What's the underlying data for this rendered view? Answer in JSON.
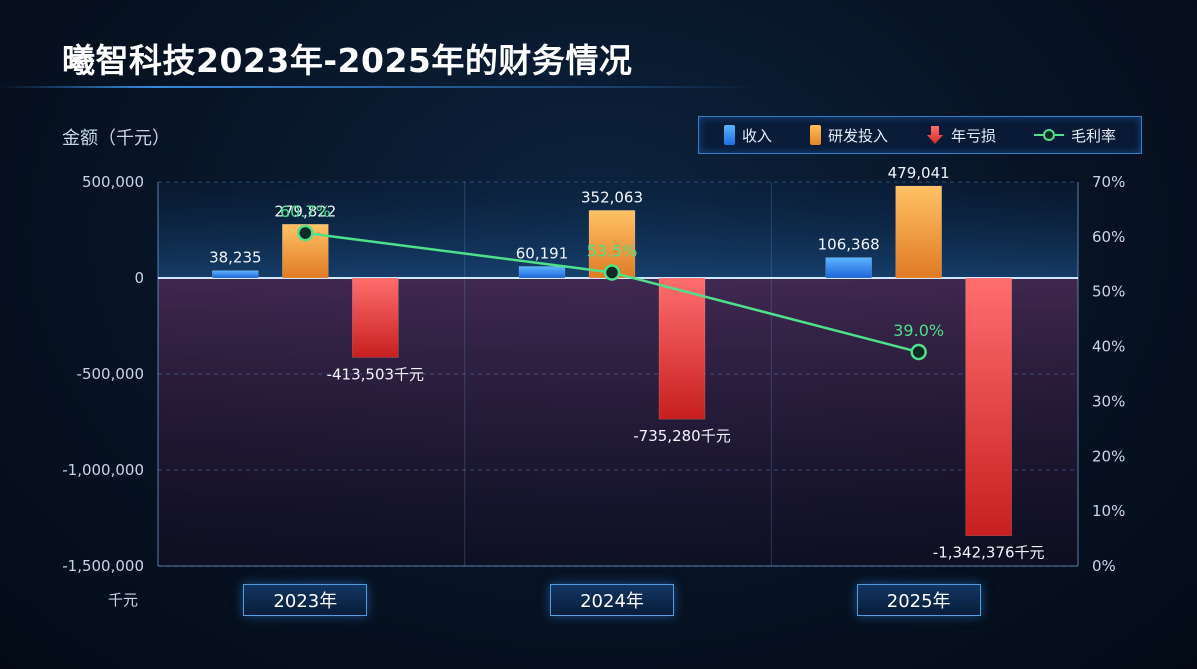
{
  "title": "曦智科技2023年-2025年的财务情况",
  "unit_top": "金额（千元）",
  "unit_bottom": "千元",
  "legend": [
    {
      "label": "收入",
      "icon": "blue-bar-icon",
      "color": "#3d8ff5"
    },
    {
      "label": "研发投入",
      "icon": "orange-bar-icon",
      "color": "#f5a23d"
    },
    {
      "label": "年亏损",
      "icon": "red-down-arrow-icon",
      "color": "#e5413f"
    },
    {
      "label": "毛利率",
      "icon": "green-line-marker-icon",
      "color": "#4ee08a"
    }
  ],
  "chart_data": {
    "type": "bar",
    "categories": [
      "2023年",
      "2024年",
      "2025年"
    ],
    "series": [
      {
        "name": "收入",
        "values": [
          38235,
          60191,
          106368
        ],
        "labels": [
          "38,235",
          "60,191",
          "106,368"
        ],
        "color": "#3d8ff5"
      },
      {
        "name": "研发投入",
        "values": [
          279822,
          352063,
          479041
        ],
        "labels": [
          "279,822",
          "352,063",
          "479,041"
        ],
        "color": "#f5a23d"
      },
      {
        "name": "年亏损",
        "values": [
          -413503,
          -735280,
          -1342376
        ],
        "labels": [
          "-413,503千元",
          "-735,280千元",
          "-1,342,376千元"
        ],
        "color": "#e5413f"
      }
    ],
    "line_series": {
      "name": "毛利率",
      "values": [
        60.7,
        53.5,
        39.0
      ],
      "labels": [
        "60.7%",
        "53.5%",
        "39.0%"
      ],
      "color": "#4ee08a"
    },
    "ylim": [
      -1500000,
      500000
    ],
    "y_ticks": [
      500000,
      0,
      -500000,
      -1000000,
      -1500000
    ],
    "y_tick_labels": [
      "500,000",
      "0",
      "-500,000",
      "-1,000,000",
      "-1,500,000"
    ],
    "y2lim": [
      0,
      70
    ],
    "y2_ticks": [
      70,
      60,
      50,
      40,
      30,
      20,
      10,
      0
    ],
    "y2_tick_labels": [
      "70%",
      "60%",
      "50%",
      "40%",
      "30%",
      "20%",
      "10%",
      "0%"
    ],
    "grid": true,
    "legend_position": "top-right"
  }
}
